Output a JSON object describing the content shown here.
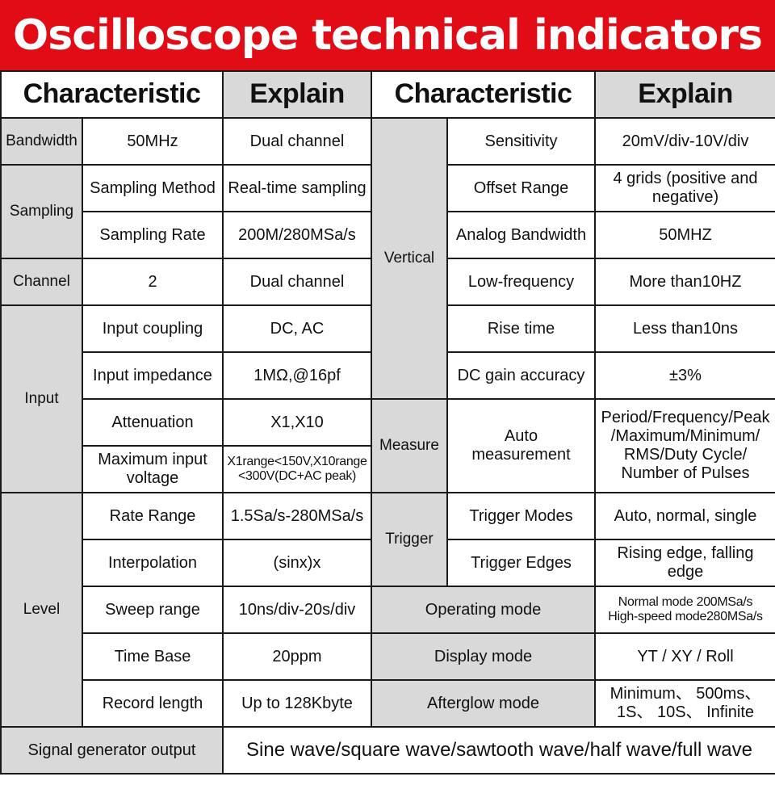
{
  "title": "Oscilloscope technical indicators",
  "headers": {
    "characteristic_left": "Characteristic",
    "explain_left": "Explain",
    "characteristic_right": "Characteristic",
    "explain_right": "Explain"
  },
  "left": {
    "bandwidth": {
      "category": "Bandwidth",
      "value": "50MHz",
      "explain": "Dual channel"
    },
    "sampling": {
      "category": "Sampling",
      "method": {
        "label": "Sampling Method",
        "explain": "Real-time sampling"
      },
      "rate": {
        "label": "Sampling Rate",
        "explain": "200M/280MSa/s"
      }
    },
    "channel": {
      "category": "Channel",
      "value": "2",
      "explain": "Dual channel"
    },
    "input": {
      "category": "Input",
      "coupling": {
        "label": "Input coupling",
        "explain": "DC, AC"
      },
      "impedance": {
        "label": "Input impedance",
        "explain": "1MΩ,@16pf"
      },
      "attenuation": {
        "label": "Attenuation",
        "explain": "X1,X10"
      },
      "max_voltage": {
        "label_1": "Maximum input",
        "label_2": "voltage",
        "explain_1": "X1range<150V,X10range",
        "explain_2": "<300V(DC+AC peak)"
      }
    },
    "level": {
      "category": "Level",
      "rate_range": {
        "label": "Rate Range",
        "explain": "1.5Sa/s-280MSa/s"
      },
      "interpolation": {
        "label": "Interpolation",
        "explain": "(sinx)x"
      },
      "sweep_range": {
        "label": "Sweep range",
        "explain": "10ns/div-20s/div"
      },
      "time_base": {
        "label": "Time Base",
        "explain": "20ppm"
      },
      "record_length": {
        "label": "Record length",
        "explain": "Up to 128Kbyte"
      }
    }
  },
  "right": {
    "vertical": {
      "category": "Vertical",
      "sensitivity": {
        "label": "Sensitivity",
        "explain": "20mV/div-10V/div"
      },
      "offset_range": {
        "label": "Offset Range",
        "explain_1": "4 grids (positive and",
        "explain_2": "negative)"
      },
      "analog_bandwidth": {
        "label": "Analog Bandwidth",
        "explain": "50MHZ"
      },
      "low_frequency": {
        "label": "Low-frequency",
        "explain": "More than10HZ"
      },
      "rise_time": {
        "label": "Rise time",
        "explain": "Less than10ns"
      },
      "dc_gain": {
        "label": "DC gain accuracy",
        "explain": "±3%"
      }
    },
    "measure": {
      "category": "Measure",
      "label_1": "Auto",
      "label_2": "measurement",
      "explain_1": "Period/Frequency/Peak",
      "explain_2": "/Maximum/Minimum/",
      "explain_3": "RMS/Duty Cycle/",
      "explain_4": "Number of Pulses"
    },
    "trigger": {
      "category": "Trigger",
      "modes": {
        "label": "Trigger Modes",
        "explain": "Auto, normal, single"
      },
      "edges": {
        "label": "Trigger Edges",
        "explain": "Rising edge, falling edge"
      }
    },
    "operating_mode": {
      "label": "Operating mode",
      "explain_1": "Normal mode 200MSa/s",
      "explain_2": "High-speed mode280MSa/s"
    },
    "display_mode": {
      "label": "Display mode",
      "explain": "YT / XY / Roll"
    },
    "afterglow_mode": {
      "label": "Afterglow mode",
      "explain_1": "Minimum、 500ms、",
      "explain_2": "1S、 10S、 Infinite"
    }
  },
  "footer": {
    "label": "Signal generator output",
    "value": "Sine wave/square wave/sawtooth wave/half wave/full wave"
  }
}
